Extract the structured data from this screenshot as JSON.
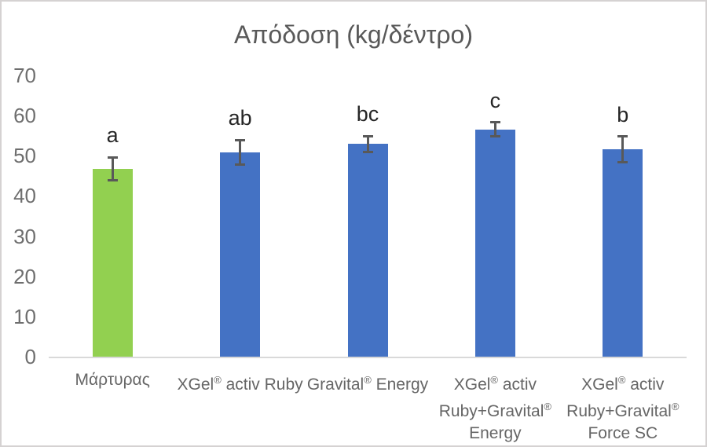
{
  "chart_data": {
    "type": "bar",
    "title": "Απόδοση (kg/δέντρο)",
    "categories": [
      {
        "label": "Μάρτυρας",
        "lines": [
          "Μάρτυρας"
        ]
      },
      {
        "label": "XGel® activ Ruby",
        "lines": [
          "XGel® activ Ruby"
        ]
      },
      {
        "label": "Gravital® Energy",
        "lines": [
          "Gravital® Energy"
        ]
      },
      {
        "label": "XGel® activ Ruby+Gravital® Energy",
        "lines": [
          "XGel® activ",
          "Ruby+Gravital®",
          "Energy"
        ]
      },
      {
        "label": "XGel® activ Ruby+Gravital® Force SC",
        "lines": [
          "XGel® activ",
          "Ruby+Gravital®",
          "Force SC"
        ]
      }
    ],
    "values": [
      46.7,
      50.9,
      52.9,
      56.6,
      51.6
    ],
    "error_bars": [
      2.9,
      3.0,
      2.0,
      1.7,
      3.2
    ],
    "significance_letters": [
      "a",
      "ab",
      "bc",
      "c",
      "b"
    ],
    "bar_colors": [
      "#92D050",
      "#4472C4",
      "#4472C4",
      "#4472C4",
      "#4472C4"
    ],
    "yticks": [
      0,
      10,
      20,
      30,
      40,
      50,
      60,
      70
    ],
    "ylim": [
      0,
      70
    ],
    "xlabel": "",
    "ylabel": "",
    "grid": false,
    "legend_position": "none",
    "axis_line_color": "#D9D9D9",
    "error_bar_color": "#595959",
    "title_color": "#595959",
    "tick_label_color": "#6E6E6E"
  }
}
